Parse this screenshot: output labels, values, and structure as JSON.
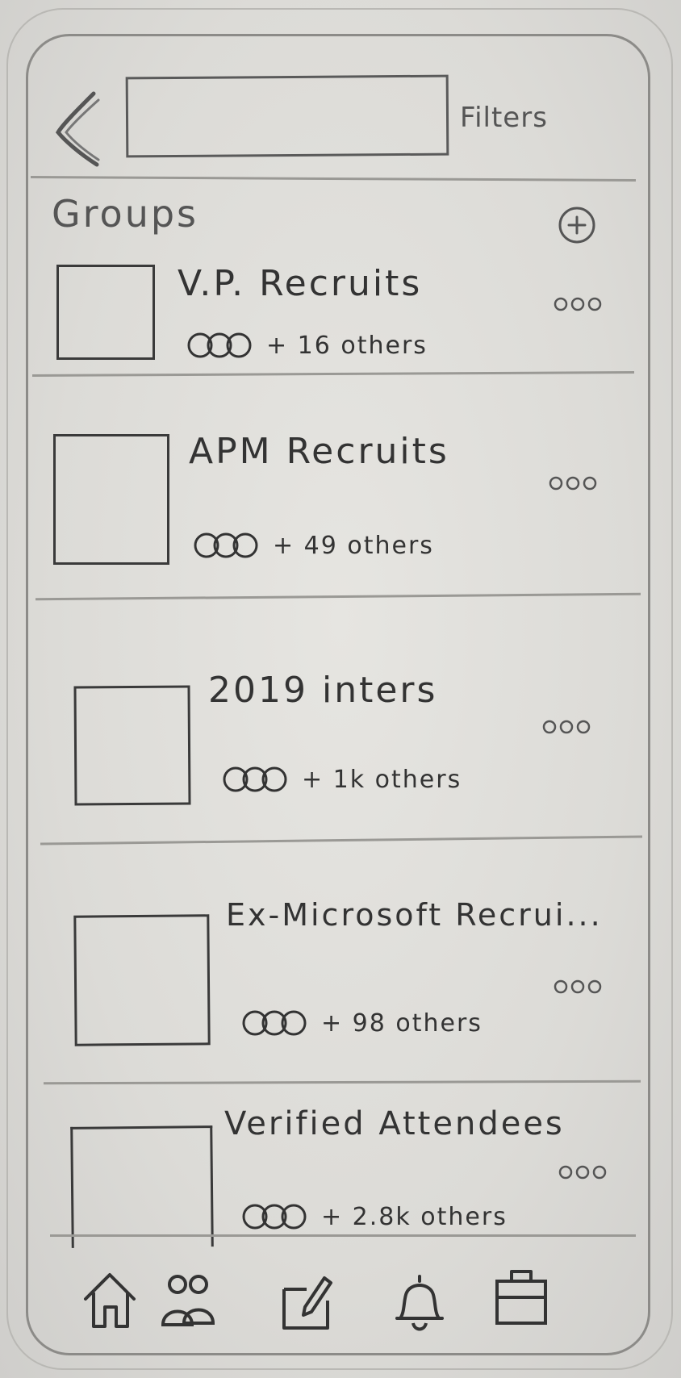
{
  "header": {
    "search": {
      "value": "",
      "placeholder": ""
    },
    "filters_label": "Filters"
  },
  "section_title": "Groups",
  "groups": [
    {
      "name": "V.P. Recruits",
      "members": "+ 16 others"
    },
    {
      "name": "APM Recruits",
      "members": "+ 49 others"
    },
    {
      "name": "2019 inters",
      "members": "+ 1k others"
    },
    {
      "name": "Ex-Microsoft Recrui...",
      "members": "+ 98 others"
    },
    {
      "name": "Verified Attendees",
      "members": "+ 2.8k others"
    }
  ],
  "nav": [
    "home-icon",
    "groups-icon",
    "post-icon",
    "notifications-icon",
    "jobs-icon"
  ],
  "colors": {
    "pencil": "#3a3a3a",
    "paper": "#e2e1dd"
  }
}
